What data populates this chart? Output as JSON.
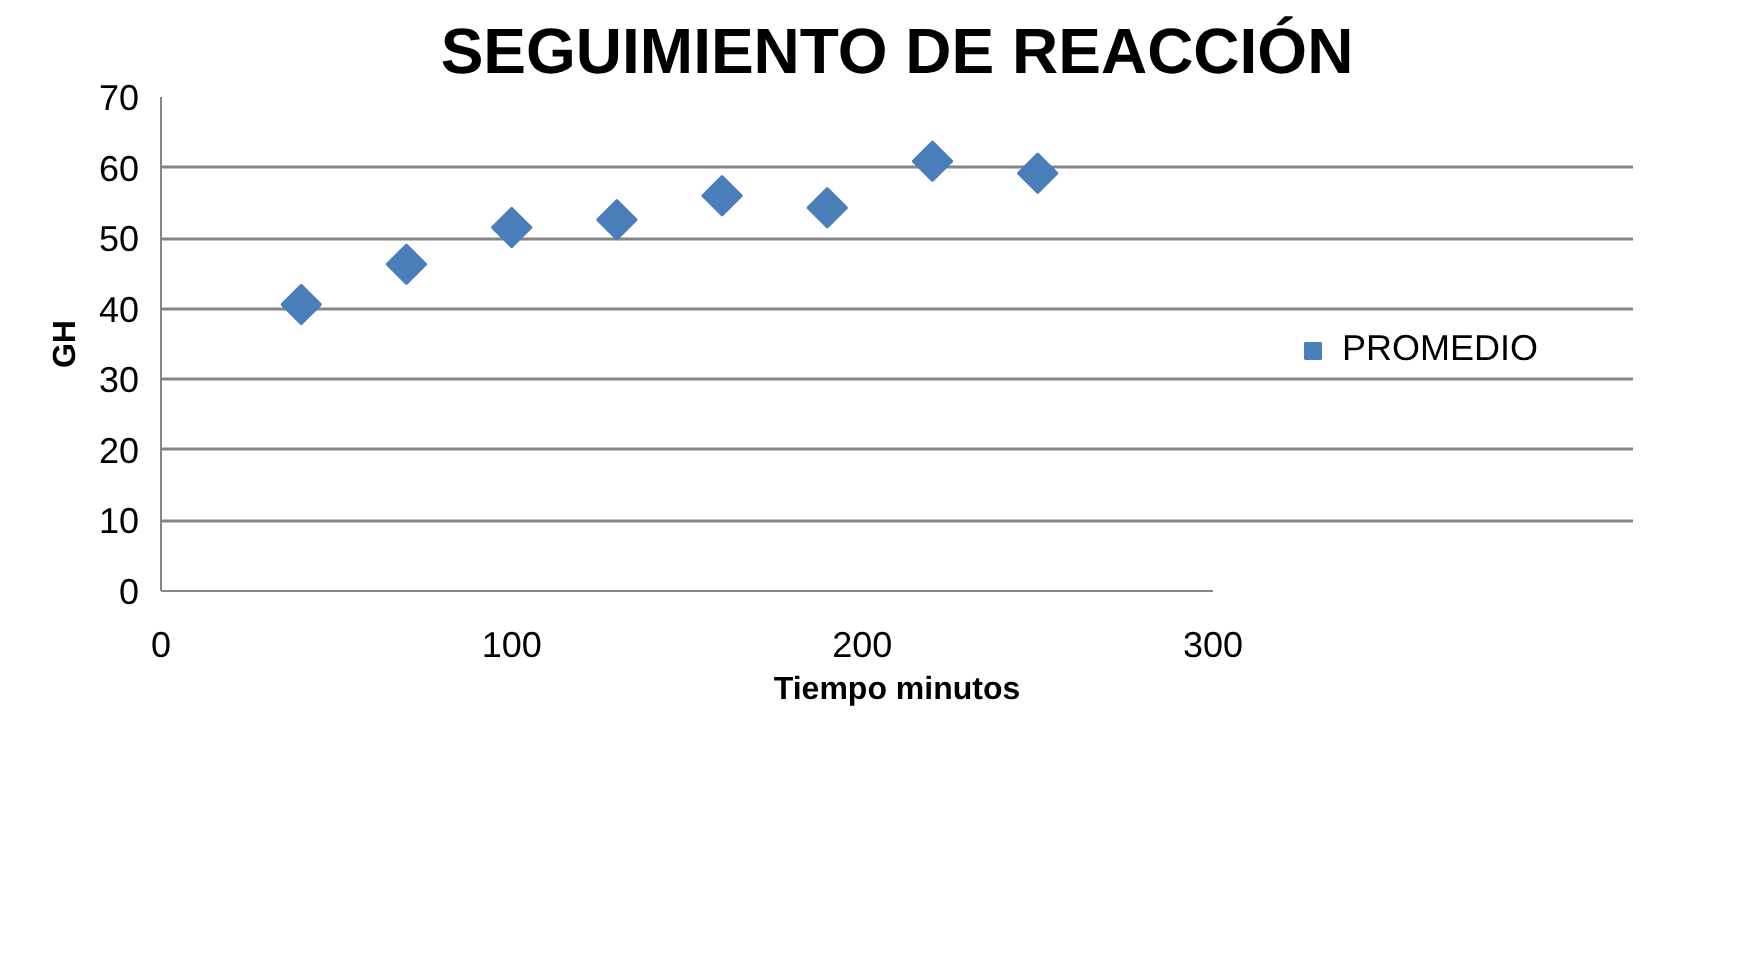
{
  "chart_data": {
    "type": "scatter",
    "title": "SEGUIMIENTO DE REACCIÓN",
    "xlabel": "Tiempo minutos",
    "ylabel": "GH",
    "x": [
      40,
      70,
      100,
      130,
      160,
      190,
      220,
      250
    ],
    "series": [
      {
        "name": "PROMEDIO",
        "color": "#4a7ebb",
        "values": [
          40.6,
          46.3,
          51.5,
          52.6,
          56.0,
          54.3,
          60.9,
          59.2
        ]
      }
    ],
    "xlim": [
      0,
      300
    ],
    "xticks": [
      0,
      100,
      200,
      300
    ],
    "ylim": [
      0,
      70
    ],
    "yticks": [
      0,
      10,
      20,
      30,
      40,
      50,
      60,
      70
    ],
    "grid": "y",
    "legend": "right",
    "marker": "diamond"
  }
}
